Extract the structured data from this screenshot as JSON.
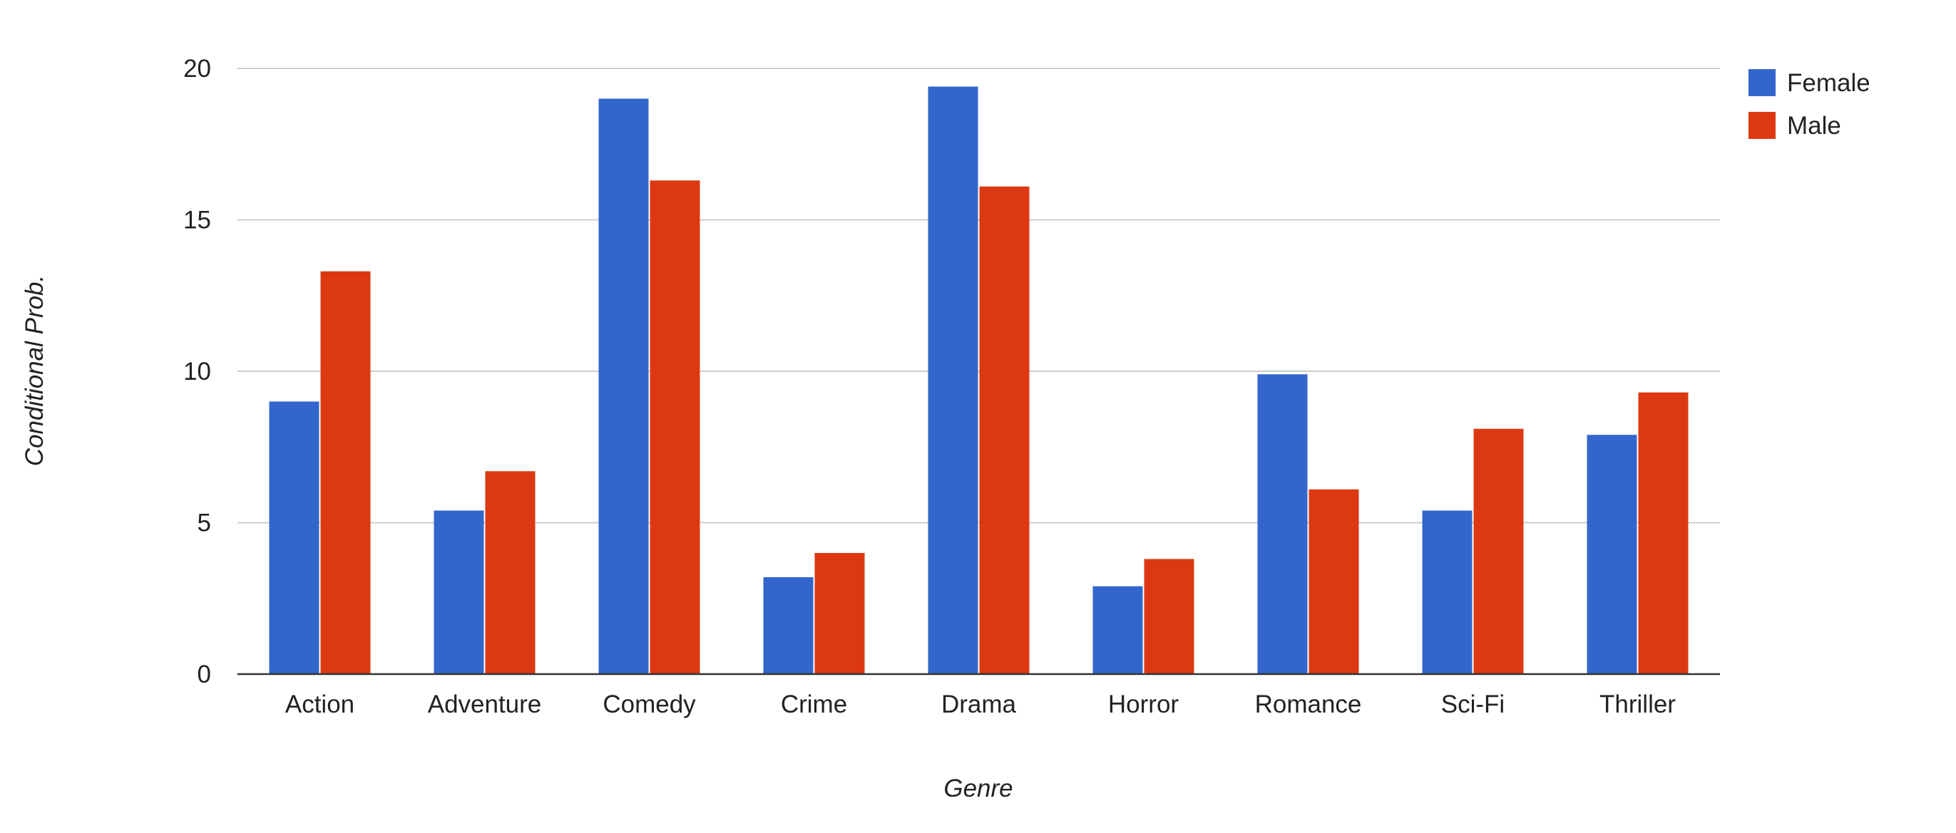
{
  "chart_data": {
    "type": "bar",
    "title": "",
    "xlabel": "Genre",
    "ylabel": "Conditional Prob.",
    "ylim": [
      0,
      20
    ],
    "yticks": [
      0,
      5,
      10,
      15,
      20
    ],
    "grid": true,
    "legend_position": "top-right",
    "categories": [
      "Action",
      "Adventure",
      "Comedy",
      "Crime",
      "Drama",
      "Horror",
      "Romance",
      "Sci-Fi",
      "Thriller"
    ],
    "series": [
      {
        "name": "Female",
        "color": "#3366cc",
        "values": [
          9.0,
          5.4,
          19.0,
          3.2,
          19.4,
          2.9,
          9.9,
          5.4,
          7.9
        ]
      },
      {
        "name": "Male",
        "color": "#dc3912",
        "values": [
          13.3,
          6.7,
          16.3,
          4.0,
          16.1,
          3.8,
          6.1,
          8.1,
          9.3
        ]
      }
    ]
  }
}
